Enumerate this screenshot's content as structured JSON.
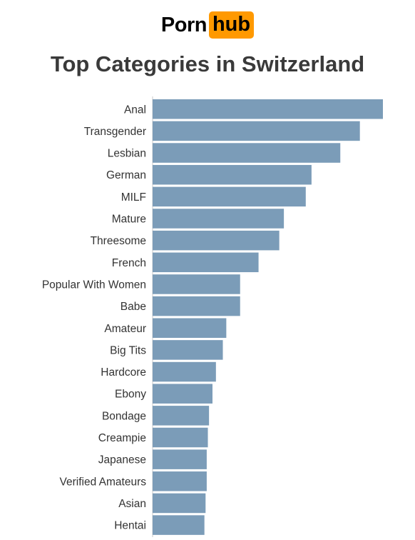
{
  "logo": {
    "part1": "Porn",
    "part2": "hub"
  },
  "colors": {
    "bar": "#7b9cb8",
    "logo_accent": "#ff9900",
    "title": "#3a3a3a",
    "axis": "#c8c8c8"
  },
  "chart_data": {
    "type": "bar",
    "orientation": "horizontal",
    "title": "Top Categories in Switzerland",
    "xlabel": "",
    "ylabel": "",
    "categories": [
      "Anal",
      "Transgender",
      "Lesbian",
      "German",
      "MILF",
      "Mature",
      "Threesome",
      "French",
      "Popular With Women",
      "Babe",
      "Amateur",
      "Big Tits",
      "Hardcore",
      "Ebony",
      "Bondage",
      "Creampie",
      "Japanese",
      "Verified Amateurs",
      "Asian",
      "Hentai"
    ],
    "values": [
      100,
      90,
      81.5,
      69,
      66.5,
      57,
      55,
      46,
      38,
      38,
      32,
      30.5,
      27.5,
      26,
      24.5,
      24,
      23.5,
      23.5,
      23,
      22.5
    ],
    "xlim": [
      0,
      100
    ],
    "grid": false,
    "legend": "none"
  }
}
